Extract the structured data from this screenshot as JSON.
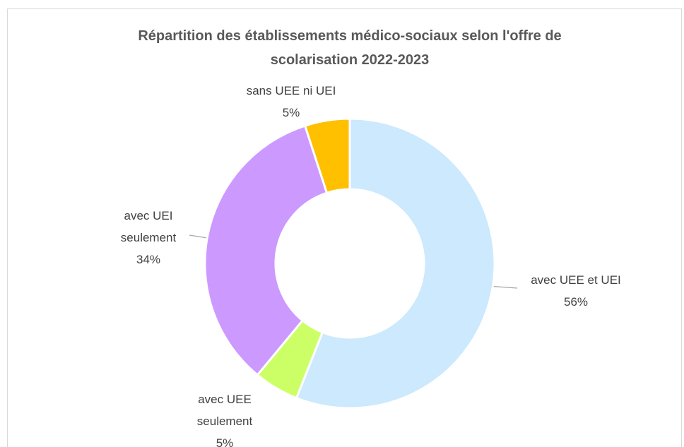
{
  "chart_data": {
    "type": "donut",
    "title": "Répartition des établissements médico-sociaux selon l'offre de scolarisation 2022-2023",
    "categories": [
      "avec UEE et UEI",
      "avec UEE seulement",
      "avec UEI seulement",
      "sans UEE ni UEI"
    ],
    "values": [
      56,
      5,
      34,
      5
    ],
    "value_labels": [
      "56%",
      "5%",
      "34%",
      "5%"
    ],
    "colors": [
      "#cce9fd",
      "#ccff66",
      "#cc99ff",
      "#ffc000"
    ]
  }
}
